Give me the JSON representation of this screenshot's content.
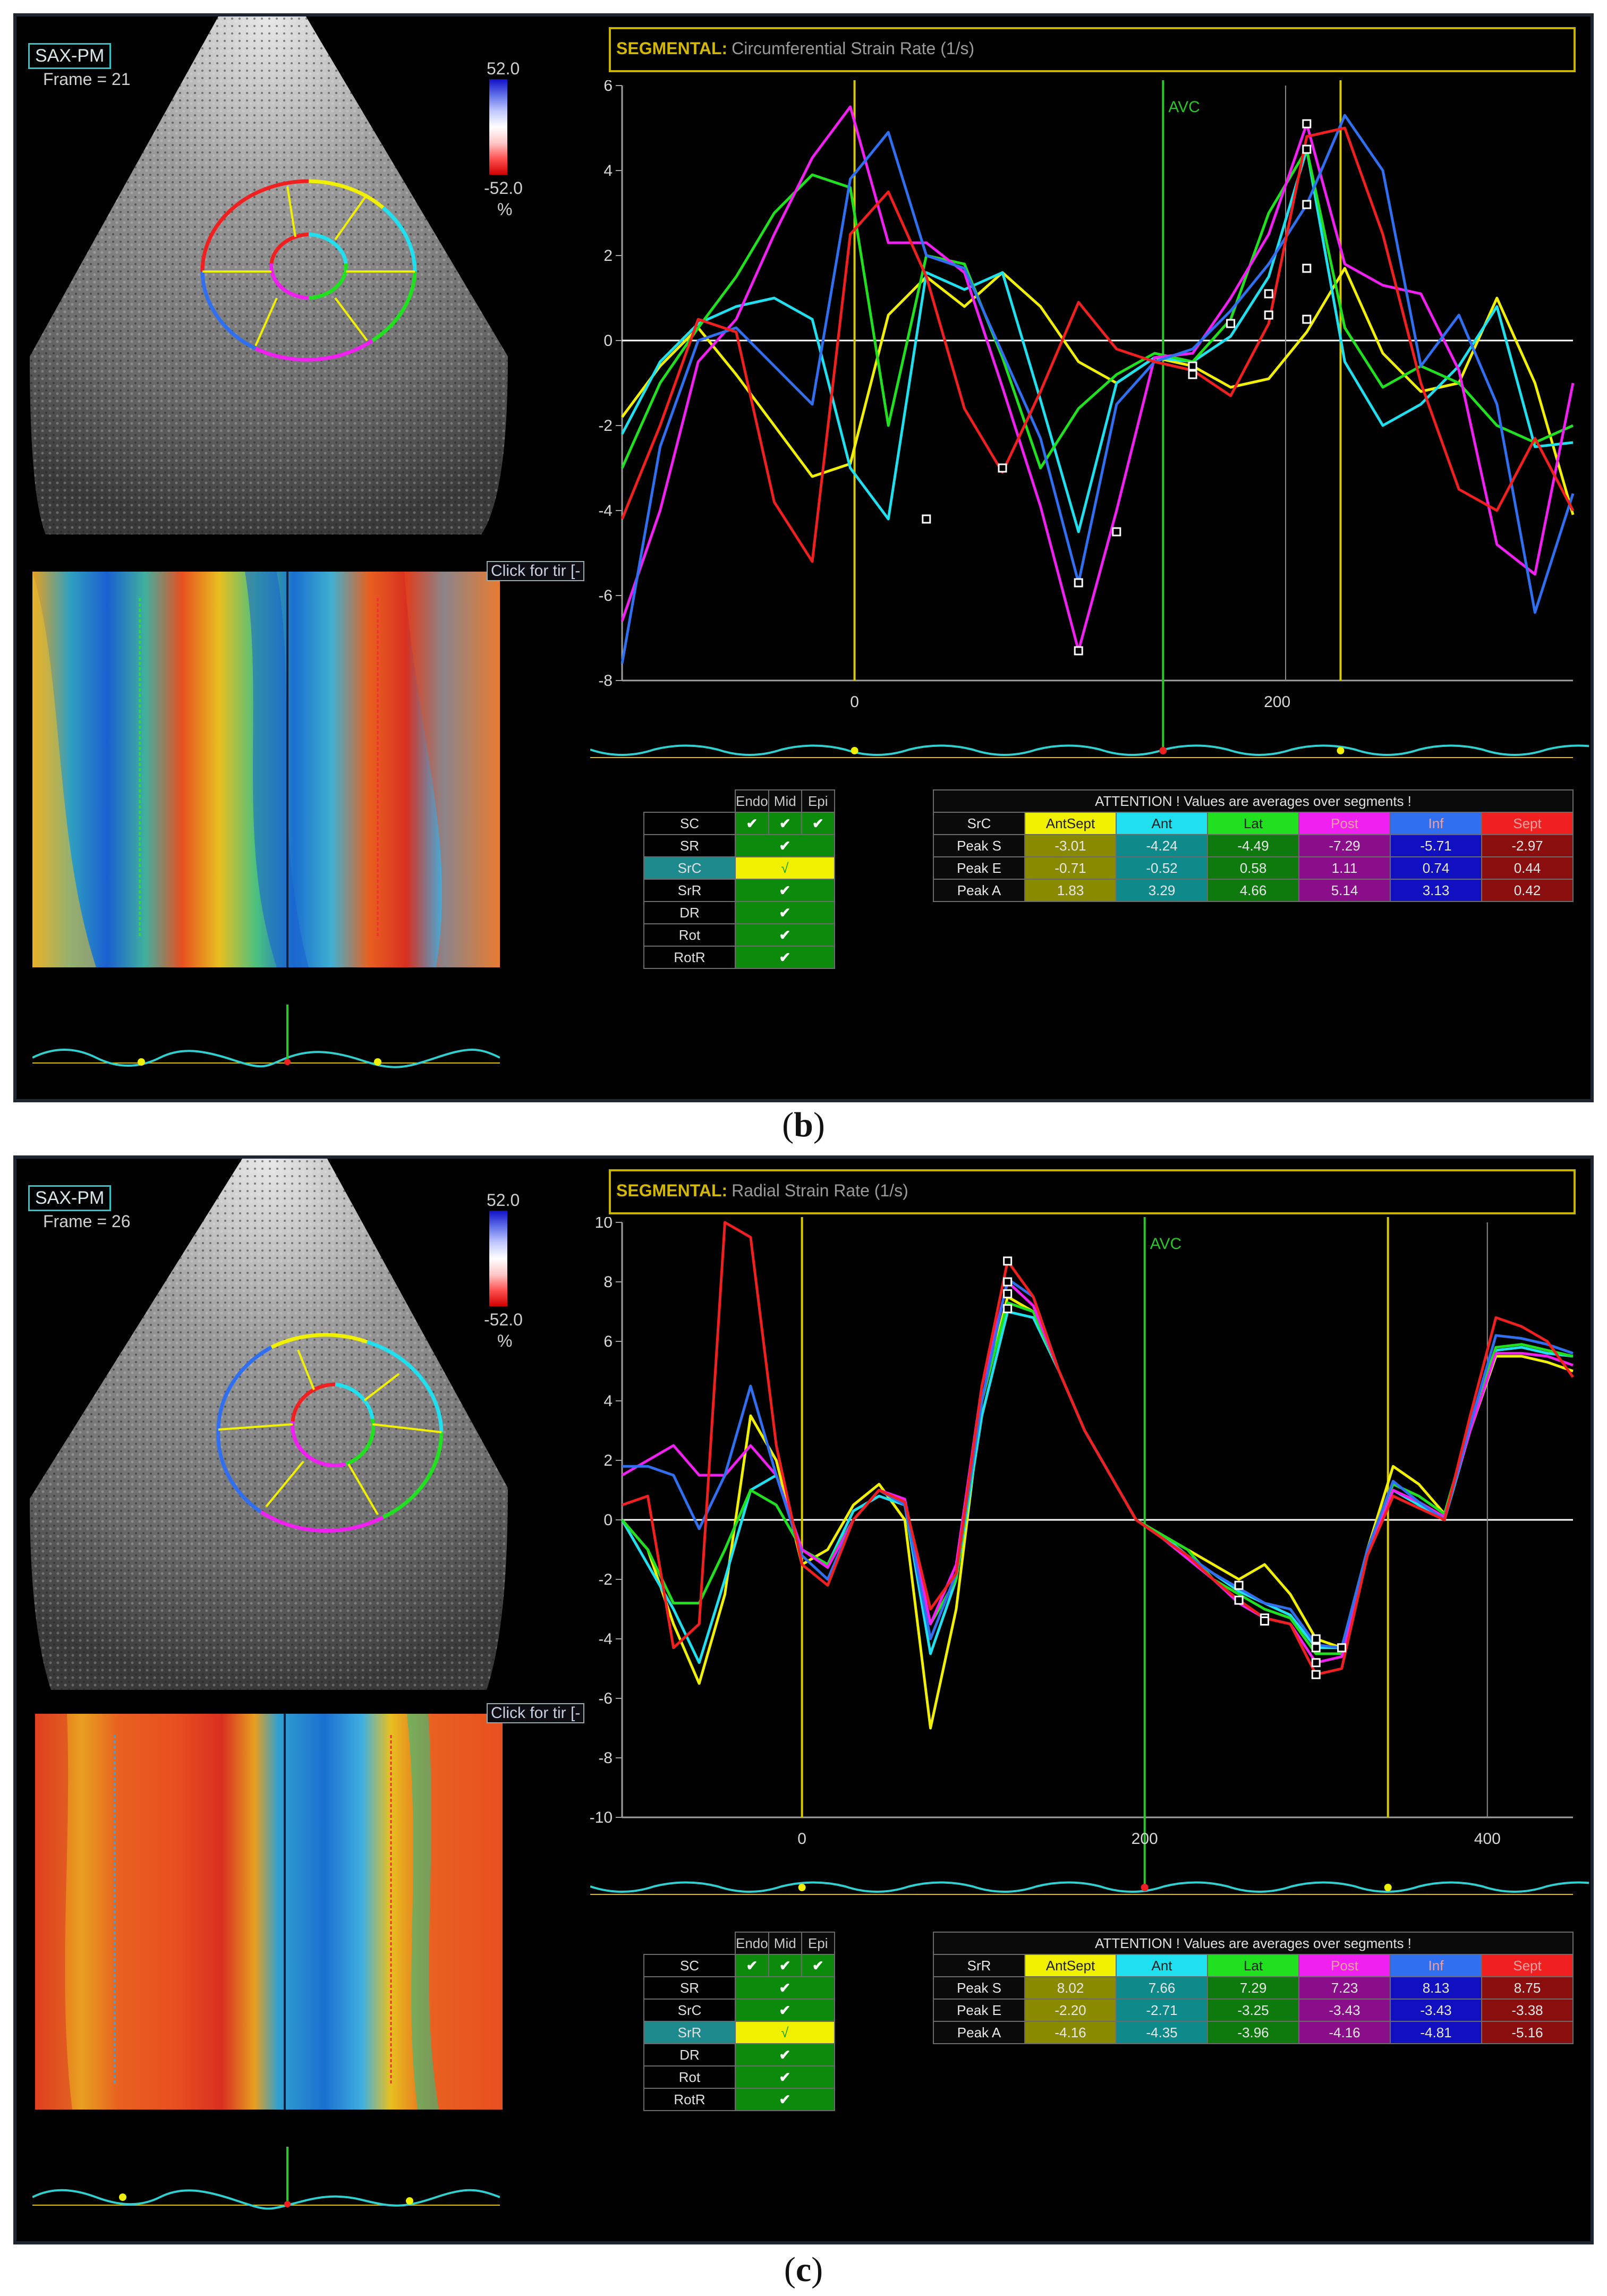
{
  "colors": {
    "AntSept": "#f0f000",
    "Ant": "#20e0f0",
    "Lat": "#20e020",
    "Post": "#f020f0",
    "Inf": "#3070f0",
    "Sept": "#f02020",
    "AntSept_dark": "#8a8a00",
    "Ant_dark": "#0e8a8a",
    "Lat_dark": "#0e7a0e",
    "Post_dark": "#8a0e8a",
    "Inf_dark": "#1010c0",
    "Sept_dark": "#8a0e0e",
    "header": "#c8b400",
    "avc": "#28c828"
  },
  "panels": [
    {
      "caption_letter": "b",
      "view": "SAX-PM",
      "frame": "Frame = 21",
      "scale": {
        "top": "52.0",
        "bottom": "-52.0",
        "unit": "%"
      },
      "click_tip": "Click for tir [-",
      "header_mode": "SEGMENTAL:",
      "header_title": "Circumferential Strain Rate (1/s)",
      "avc_label": "AVC",
      "params": [
        {
          "label": "SC",
          "endo": "✔",
          "mid": "✔",
          "epi": "✔",
          "type": "header"
        },
        {
          "label": "SR",
          "value": "✔"
        },
        {
          "label": "SrC",
          "value": "√",
          "selected": true
        },
        {
          "label": "SrR",
          "value": "✔"
        },
        {
          "label": "DR",
          "value": "✔"
        },
        {
          "label": "Rot",
          "value": "✔"
        },
        {
          "label": "RotR",
          "value": "✔"
        }
      ],
      "layer_headers": [
        "Endo",
        "Mid",
        "Epi"
      ],
      "attention": "ATTENTION !  Values are averages over segments !",
      "table_param": "SrC",
      "segments": [
        "AntSept",
        "Ant",
        "Lat",
        "Post",
        "Inf",
        "Sept"
      ],
      "rows": [
        {
          "label": "Peak S",
          "values": [
            "-3.01",
            "-4.24",
            "-4.49",
            "-7.29",
            "-5.71",
            "-2.97"
          ]
        },
        {
          "label": "Peak E",
          "values": [
            "-0.71",
            "-0.52",
            "0.58",
            "1.11",
            "0.74",
            "0.44"
          ]
        },
        {
          "label": "Peak A",
          "values": [
            "1.83",
            "3.29",
            "4.66",
            "5.14",
            "3.13",
            "0.42"
          ]
        }
      ],
      "chart_data": {
        "type": "line",
        "title": "Circumferential Strain Rate (1/s)",
        "ylim": [
          -8,
          6
        ],
        "xlim": [
          -55,
          170
        ],
        "yticks": [
          "6",
          "4",
          "2",
          "0",
          "-2",
          "-4",
          "-6",
          "-8"
        ],
        "xticks": [
          "0",
          "200"
        ],
        "xtick_values": [
          0,
          100
        ],
        "vlines_yellow": [
          0,
          115
        ],
        "vline_avc": 73,
        "grid_x": [
          102
        ],
        "x": [
          -55,
          -46,
          -37,
          -28,
          -19,
          -10,
          -1,
          8,
          17,
          26,
          35,
          44,
          53,
          62,
          71,
          80,
          89,
          98,
          107,
          116,
          125,
          134,
          143,
          152,
          161,
          170
        ],
        "series": [
          {
            "name": "AntSept",
            "values": [
              -1.8,
              -0.6,
              0.3,
              -0.8,
              -2.0,
              -3.2,
              -2.9,
              0.6,
              1.5,
              0.8,
              1.6,
              0.8,
              -0.5,
              -1.0,
              -0.4,
              -0.6,
              -1.1,
              -0.9,
              0.2,
              1.7,
              -0.3,
              -1.2,
              -1.0,
              1.0,
              -1.0,
              -4.1
            ]
          },
          {
            "name": "Ant",
            "values": [
              -2.2,
              -0.5,
              0.4,
              0.8,
              1.0,
              0.5,
              -3.0,
              -4.2,
              1.6,
              1.2,
              1.6,
              -1.4,
              -4.5,
              -1.0,
              -0.4,
              -0.5,
              0.1,
              1.5,
              4.5,
              -0.5,
              -2.0,
              -1.5,
              -0.6,
              0.8,
              -2.5,
              -2.4
            ]
          },
          {
            "name": "Lat",
            "values": [
              -3.0,
              -1.0,
              0.3,
              1.5,
              3.0,
              3.9,
              3.6,
              -2.0,
              2.0,
              1.8,
              -0.4,
              -3.0,
              -1.6,
              -0.8,
              -0.3,
              -0.5,
              0.5,
              3.0,
              4.5,
              0.3,
              -1.1,
              -0.6,
              -1.0,
              -2.0,
              -2.4,
              -2.0
            ]
          },
          {
            "name": "Post",
            "values": [
              -6.6,
              -4.0,
              -0.5,
              0.5,
              2.5,
              4.3,
              5.5,
              2.3,
              2.3,
              1.6,
              -1.1,
              -3.9,
              -7.3,
              -4.0,
              -0.4,
              -0.3,
              1.0,
              2.5,
              5.1,
              1.8,
              1.3,
              1.1,
              -0.7,
              -4.8,
              -5.5,
              -1.0
            ]
          },
          {
            "name": "Inf",
            "values": [
              -7.6,
              -2.5,
              0.0,
              0.3,
              -0.6,
              -1.5,
              3.8,
              4.9,
              2.0,
              1.7,
              -0.3,
              -2.3,
              -5.7,
              -1.5,
              -0.5,
              -0.2,
              0.7,
              1.8,
              3.2,
              5.3,
              4.0,
              -0.6,
              0.6,
              -1.5,
              -6.4,
              -3.6
            ]
          },
          {
            "name": "Sept",
            "values": [
              -4.2,
              -2.0,
              0.5,
              0.2,
              -3.8,
              -5.2,
              2.5,
              3.5,
              1.5,
              -1.6,
              -3.1,
              -1.2,
              0.9,
              -0.2,
              -0.5,
              -0.7,
              -1.3,
              0.4,
              4.8,
              5.0,
              2.5,
              -1.0,
              -3.5,
              -4.0,
              -2.3,
              -4.0
            ]
          }
        ],
        "markers": [
          [
            17,
            -4.2
          ],
          [
            35,
            -3.0
          ],
          [
            53,
            -5.7
          ],
          [
            53,
            -7.3
          ],
          [
            62,
            -4.5
          ],
          [
            80,
            -0.6
          ],
          [
            80,
            -0.8
          ],
          [
            89,
            0.4
          ],
          [
            98,
            0.6
          ],
          [
            98,
            1.1
          ],
          [
            107,
            5.1
          ],
          [
            107,
            4.5
          ],
          [
            107,
            3.2
          ],
          [
            107,
            1.7
          ],
          [
            107,
            0.5
          ]
        ]
      },
      "strip_markers": [
        "yellow",
        "red",
        "yellow"
      ]
    },
    {
      "caption_letter": "c",
      "view": "SAX-PM",
      "frame": "Frame = 26",
      "scale": {
        "top": "52.0",
        "bottom": "-52.0",
        "unit": "%"
      },
      "click_tip": "Click for tir [-",
      "header_mode": "SEGMENTAL:",
      "header_title": "Radial Strain Rate (1/s)",
      "avc_label": "AVC",
      "params": [
        {
          "label": "SC",
          "endo": "✔",
          "mid": "✔",
          "epi": "✔",
          "type": "header"
        },
        {
          "label": "SR",
          "value": "✔"
        },
        {
          "label": "SrC",
          "value": "✔"
        },
        {
          "label": "SrR",
          "value": "√",
          "selected": true
        },
        {
          "label": "DR",
          "value": "✔"
        },
        {
          "label": "Rot",
          "value": "✔"
        },
        {
          "label": "RotR",
          "value": "✔"
        }
      ],
      "layer_headers": [
        "Endo",
        "Mid",
        "Epi"
      ],
      "attention": "ATTENTION !  Values are averages over segments !",
      "table_param": "SrR",
      "segments": [
        "AntSept",
        "Ant",
        "Lat",
        "Post",
        "Inf",
        "Sept"
      ],
      "rows": [
        {
          "label": "Peak S",
          "values": [
            "8.02",
            "7.66",
            "7.29",
            "7.23",
            "8.13",
            "8.75"
          ]
        },
        {
          "label": "Peak E",
          "values": [
            "-2.20",
            "-2.71",
            "-3.25",
            "-3.43",
            "-3.43",
            "-3.38"
          ]
        },
        {
          "label": "Peak A",
          "values": [
            "-4.16",
            "-4.35",
            "-3.96",
            "-4.16",
            "-4.81",
            "-5.16"
          ]
        }
      ],
      "chart_data": {
        "type": "line",
        "title": "Radial Strain Rate (1/s)",
        "ylim": [
          -10,
          10
        ],
        "xlim": [
          -105,
          450
        ],
        "yticks": [
          "10",
          "8",
          "6",
          "4",
          "2",
          "0",
          "-2",
          "-4",
          "-6",
          "-8",
          "-10"
        ],
        "xticks": [
          "0",
          "200",
          "400"
        ],
        "xtick_values": [
          0,
          200,
          400
        ],
        "vlines_yellow": [
          0,
          342
        ],
        "vline_avc": 200,
        "grid_x": [
          400
        ],
        "x": [
          -105,
          -90,
          -75,
          -60,
          -45,
          -30,
          -15,
          0,
          15,
          30,
          45,
          60,
          75,
          90,
          105,
          120,
          135,
          150,
          165,
          180,
          195,
          210,
          225,
          240,
          255,
          270,
          285,
          300,
          315,
          330,
          345,
          360,
          375,
          390,
          405,
          420,
          435,
          450
        ],
        "series": [
          {
            "name": "AntSept",
            "values": [
              0.0,
              -1.0,
              -3.5,
              -5.5,
              -2.5,
              3.5,
              2.0,
              -1.5,
              -1.0,
              0.5,
              1.2,
              0.0,
              -7.0,
              -3.0,
              4.0,
              7.5,
              7.0,
              5.0,
              3.0,
              1.5,
              0.0,
              -0.5,
              -1.0,
              -1.5,
              -2.0,
              -1.5,
              -2.5,
              -4.0,
              -4.3,
              -1.0,
              1.8,
              1.2,
              0.2,
              3.0,
              5.5,
              5.5,
              5.3,
              5.0
            ]
          },
          {
            "name": "Ant",
            "values": [
              0.0,
              -1.5,
              -3.0,
              -4.8,
              -2.0,
              1.0,
              1.5,
              -1.0,
              -1.5,
              0.3,
              0.8,
              0.5,
              -4.5,
              -2.0,
              3.5,
              7.0,
              6.8,
              5.0,
              3.0,
              1.5,
              0.0,
              -0.5,
              -1.2,
              -1.8,
              -2.4,
              -2.8,
              -3.2,
              -4.3,
              -4.3,
              -1.2,
              1.0,
              0.5,
              0.0,
              3.0,
              5.7,
              5.8,
              5.6,
              5.5
            ]
          },
          {
            "name": "Lat",
            "values": [
              0.0,
              -1.0,
              -2.8,
              -2.8,
              -1.0,
              1.0,
              0.5,
              -1.0,
              -1.5,
              0.0,
              1.0,
              0.5,
              -3.5,
              -2.0,
              4.0,
              7.3,
              7.0,
              5.0,
              3.0,
              1.5,
              0.0,
              -0.5,
              -1.0,
              -2.0,
              -2.5,
              -3.0,
              -3.3,
              -4.5,
              -4.5,
              -1.0,
              1.2,
              0.8,
              0.2,
              3.2,
              5.8,
              5.9,
              5.7,
              5.5
            ]
          },
          {
            "name": "Post",
            "values": [
              1.5,
              2.0,
              2.5,
              1.5,
              1.5,
              2.5,
              1.5,
              -1.0,
              -1.6,
              0.0,
              1.0,
              0.7,
              -3.5,
              -1.5,
              4.5,
              8.0,
              7.2,
              5.0,
              3.0,
              1.5,
              0.0,
              -0.6,
              -1.3,
              -2.0,
              -2.8,
              -3.3,
              -3.5,
              -4.8,
              -4.6,
              -1.2,
              1.0,
              0.6,
              0.1,
              3.0,
              5.6,
              5.6,
              5.5,
              5.2
            ]
          },
          {
            "name": "Inf",
            "values": [
              1.8,
              1.8,
              1.5,
              -0.3,
              1.5,
              4.5,
              1.5,
              -1.2,
              -2.0,
              0.0,
              1.0,
              0.5,
              -4.0,
              -1.8,
              4.0,
              8.1,
              7.5,
              5.0,
              3.0,
              1.5,
              0.0,
              -0.6,
              -1.2,
              -1.8,
              -2.3,
              -2.8,
              -3.0,
              -4.2,
              -4.3,
              -1.0,
              1.3,
              0.6,
              0.0,
              3.2,
              6.2,
              6.1,
              5.9,
              5.6
            ]
          },
          {
            "name": "Sept",
            "values": [
              0.5,
              0.8,
              -4.3,
              -3.5,
              10.0,
              9.5,
              2.5,
              -1.5,
              -2.2,
              0.0,
              1.0,
              0.6,
              -3.0,
              -1.8,
              4.5,
              8.7,
              7.5,
              5.0,
              3.0,
              1.5,
              0.0,
              -0.6,
              -1.2,
              -2.0,
              -2.7,
              -3.3,
              -3.5,
              -5.2,
              -5.0,
              -1.2,
              0.8,
              0.4,
              0.0,
              3.5,
              6.8,
              6.5,
              6.0,
              4.8
            ]
          }
        ],
        "markers": [
          [
            120,
            8.7
          ],
          [
            120,
            8.0
          ],
          [
            120,
            7.6
          ],
          [
            120,
            7.1
          ],
          [
            255,
            -2.2
          ],
          [
            255,
            -2.7
          ],
          [
            270,
            -3.3
          ],
          [
            270,
            -3.4
          ],
          [
            300,
            -4.0
          ],
          [
            300,
            -4.3
          ],
          [
            300,
            -4.8
          ],
          [
            300,
            -5.2
          ],
          [
            315,
            -4.3
          ]
        ]
      },
      "strip_markers": [
        "yellow",
        "red",
        "yellow"
      ]
    }
  ]
}
